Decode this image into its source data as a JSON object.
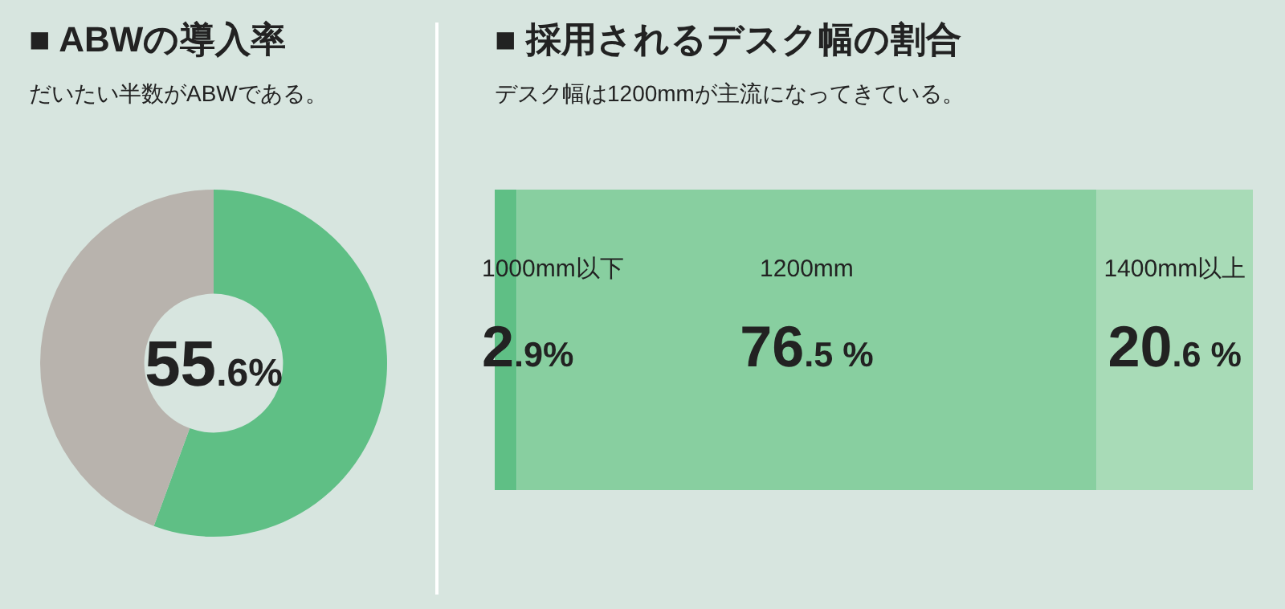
{
  "chart_data": [
    {
      "type": "donut",
      "title": "■ ABWの導入率",
      "subtitle": "だいたい半数がABWである。",
      "categories": [
        null,
        null
      ],
      "values": [
        55.6,
        44.4
      ],
      "colors": [
        "#5fbf85",
        "#b8b3ad"
      ],
      "value_labels": [
        "55.6%",
        null
      ]
    },
    {
      "type": "bar",
      "orientation": "horizontal",
      "stacked": true,
      "title": "■ 採用されるデスク幅の割合",
      "subtitle": "デスク幅は1200mmが主流になってきている。",
      "categories": [
        null
      ],
      "series": [
        {
          "name": "1000mm以下",
          "color": "#5fbf85",
          "values": [
            2.9
          ],
          "value_labels": [
            "2.9%"
          ]
        },
        {
          "name": "1200mm",
          "color": "#88cfa0",
          "values": [
            76.5
          ],
          "value_labels": [
            "76.5 %"
          ]
        },
        {
          "name": "1400mm以上",
          "color": "#a8dbb7",
          "values": [
            20.6
          ],
          "value_labels": [
            "20.6 %"
          ]
        }
      ]
    }
  ]
}
